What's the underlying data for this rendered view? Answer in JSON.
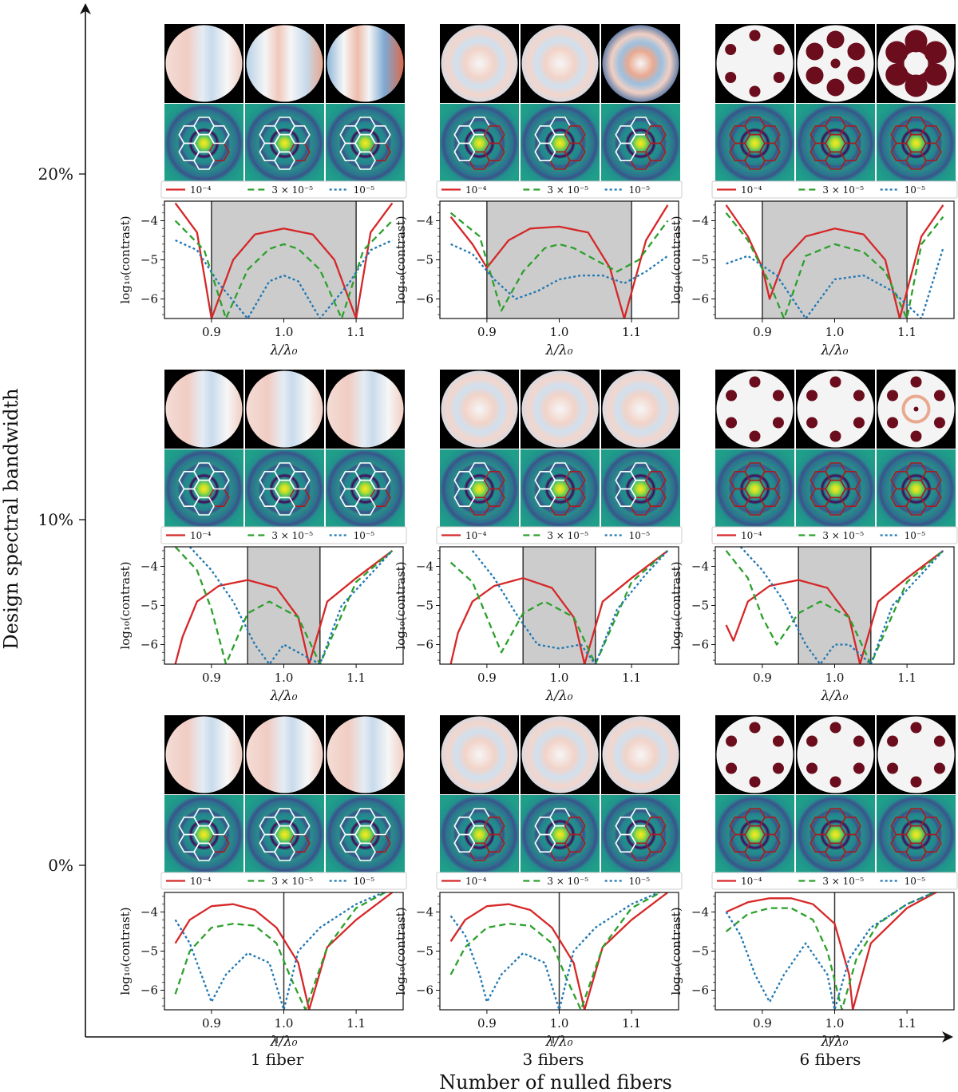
{
  "figure": {
    "y_axis_label": "Design spectral bandwidth",
    "x_axis_label": "Number of nulled fibers",
    "y_ticks": [
      "20%",
      "10%",
      "0%"
    ],
    "x_ticks": [
      "1 fiber",
      "3 fibers",
      "6 fibers"
    ]
  },
  "legend": {
    "entries": [
      "10⁻⁴",
      "3 × 10⁻⁵",
      "10⁻⁵"
    ]
  },
  "plot_labels": {
    "xlabel": "λ/λ₀",
    "ylabel": "log₁₀(contrast)"
  },
  "colors": {
    "red": "#d62728",
    "green": "#2ca02c",
    "blue": "#1f77b4",
    "band": "#cccccc",
    "dark_red": "#6b0d1c"
  },
  "chart_data": [
    {
      "type": "line",
      "bandwidth": "20%",
      "fibers": "1 fiber",
      "band": [
        0.9,
        1.1
      ],
      "xlim": [
        0.835,
        1.165
      ],
      "ylim": [
        -6.5,
        -3.5
      ],
      "xticks": [
        0.9,
        1.0,
        1.1
      ],
      "yticks": [
        -4,
        -5,
        -6
      ],
      "xlabel": "λ/λ₀",
      "ylabel": "log₁₀(contrast)",
      "series": [
        {
          "name": "10⁻⁴",
          "x": [
            0.85,
            0.88,
            0.9,
            0.93,
            0.96,
            1.0,
            1.04,
            1.07,
            1.1,
            1.12,
            1.15
          ],
          "y": [
            -3.55,
            -4.3,
            -6.5,
            -5.0,
            -4.35,
            -4.2,
            -4.35,
            -5.0,
            -6.5,
            -4.3,
            -3.55
          ]
        },
        {
          "name": "3 × 10⁻⁵",
          "x": [
            0.85,
            0.89,
            0.92,
            0.95,
            0.98,
            1.0,
            1.02,
            1.05,
            1.08,
            1.11,
            1.15
          ],
          "y": [
            -4.0,
            -4.75,
            -6.5,
            -5.25,
            -4.72,
            -4.6,
            -4.72,
            -5.25,
            -6.5,
            -4.75,
            -4.0
          ]
        },
        {
          "name": "10⁻⁵",
          "x": [
            0.85,
            0.88,
            0.91,
            0.95,
            0.98,
            1.0,
            1.02,
            1.05,
            1.09,
            1.12,
            1.15
          ],
          "y": [
            -4.5,
            -4.75,
            -5.6,
            -6.5,
            -5.55,
            -5.4,
            -5.55,
            -6.5,
            -5.6,
            -4.75,
            -4.5
          ]
        }
      ]
    },
    {
      "type": "line",
      "bandwidth": "20%",
      "fibers": "3 fibers",
      "band": [
        0.9,
        1.1
      ],
      "xlim": [
        0.835,
        1.165
      ],
      "ylim": [
        -6.5,
        -3.5
      ],
      "xticks": [
        0.9,
        1.0,
        1.1
      ],
      "yticks": [
        -4,
        -5,
        -6
      ],
      "xlabel": "λ/λ₀",
      "ylabel": "log₁₀(contrast)",
      "series": [
        {
          "name": "10⁻⁴",
          "x": [
            0.85,
            0.88,
            0.9,
            0.93,
            0.96,
            1.0,
            1.04,
            1.07,
            1.09,
            1.12,
            1.15
          ],
          "y": [
            -3.9,
            -4.6,
            -5.2,
            -4.5,
            -4.2,
            -4.15,
            -4.3,
            -5.2,
            -6.5,
            -4.5,
            -3.6
          ]
        },
        {
          "name": "3 × 10⁻⁵",
          "x": [
            0.85,
            0.89,
            0.92,
            0.95,
            0.98,
            1.0,
            1.02,
            1.05,
            1.08,
            1.11,
            1.15
          ],
          "y": [
            -3.8,
            -4.4,
            -6.3,
            -5.3,
            -4.7,
            -4.6,
            -4.7,
            -5.0,
            -5.3,
            -5.0,
            -4.0
          ]
        },
        {
          "name": "10⁻⁵",
          "x": [
            0.85,
            0.88,
            0.91,
            0.94,
            0.97,
            1.0,
            1.03,
            1.06,
            1.09,
            1.12,
            1.15
          ],
          "y": [
            -4.6,
            -4.85,
            -5.5,
            -6.0,
            -5.8,
            -5.5,
            -5.4,
            -5.4,
            -5.6,
            -5.3,
            -4.9
          ]
        }
      ]
    },
    {
      "type": "line",
      "bandwidth": "20%",
      "fibers": "6 fibers",
      "band": [
        0.9,
        1.1
      ],
      "xlim": [
        0.835,
        1.165
      ],
      "ylim": [
        -6.5,
        -3.5
      ],
      "xticks": [
        0.9,
        1.0,
        1.1
      ],
      "yticks": [
        -4,
        -5,
        -6
      ],
      "xlabel": "λ/λ₀",
      "ylabel": "log₁₀(contrast)",
      "series": [
        {
          "name": "10⁻⁴",
          "x": [
            0.85,
            0.88,
            0.9,
            0.91,
            0.93,
            0.96,
            1.0,
            1.04,
            1.07,
            1.09,
            1.12,
            1.15
          ],
          "y": [
            -3.6,
            -4.4,
            -5.2,
            -6.0,
            -5.0,
            -4.4,
            -4.2,
            -4.35,
            -5.0,
            -6.5,
            -4.4,
            -3.6
          ]
        },
        {
          "name": "3 × 10⁻⁵",
          "x": [
            0.85,
            0.88,
            0.91,
            0.93,
            0.96,
            1.0,
            1.04,
            1.07,
            1.1,
            1.12,
            1.15
          ],
          "y": [
            -3.8,
            -4.5,
            -5.6,
            -6.5,
            -4.9,
            -4.6,
            -4.8,
            -5.3,
            -6.5,
            -4.6,
            -3.9
          ]
        },
        {
          "name": "10⁻⁵",
          "x": [
            0.85,
            0.88,
            0.92,
            0.96,
            1.0,
            1.04,
            1.08,
            1.12,
            1.15
          ],
          "y": [
            -5.1,
            -4.9,
            -5.4,
            -6.5,
            -5.5,
            -5.4,
            -5.8,
            -6.5,
            -4.7
          ]
        }
      ]
    },
    {
      "type": "line",
      "bandwidth": "10%",
      "fibers": "1 fiber",
      "band": [
        0.95,
        1.05
      ],
      "xlim": [
        0.835,
        1.165
      ],
      "ylim": [
        -6.5,
        -3.5
      ],
      "xticks": [
        0.9,
        1.0,
        1.1
      ],
      "yticks": [
        -4,
        -5,
        -6
      ],
      "xlabel": "λ/λ₀",
      "ylabel": "log₁₀(contrast)",
      "series": [
        {
          "name": "10⁻⁴",
          "x": [
            0.85,
            0.86,
            0.88,
            0.91,
            0.95,
            0.99,
            1.02,
            1.035,
            1.06,
            1.1,
            1.15
          ],
          "y": [
            -6.5,
            -5.8,
            -4.9,
            -4.5,
            -4.35,
            -4.55,
            -5.3,
            -6.5,
            -4.9,
            -4.3,
            -3.6
          ]
        },
        {
          "name": "3 × 10⁻⁵",
          "x": [
            0.85,
            0.88,
            0.9,
            0.92,
            0.95,
            0.98,
            1.02,
            1.05,
            1.1,
            1.15
          ],
          "y": [
            -3.5,
            -4.1,
            -5.1,
            -6.5,
            -5.2,
            -4.9,
            -5.3,
            -6.5,
            -4.4,
            -3.6
          ]
        },
        {
          "name": "10⁻⁵",
          "x": [
            0.87,
            0.9,
            0.93,
            0.96,
            0.98,
            1.0,
            1.02,
            1.05,
            1.08,
            1.12,
            1.15
          ],
          "y": [
            -3.5,
            -4.1,
            -4.9,
            -6.0,
            -6.5,
            -6.0,
            -6.2,
            -6.5,
            -5.0,
            -4.2,
            -3.6
          ]
        }
      ]
    },
    {
      "type": "line",
      "bandwidth": "10%",
      "fibers": "3 fibers",
      "band": [
        0.95,
        1.05
      ],
      "xlim": [
        0.835,
        1.165
      ],
      "ylim": [
        -6.5,
        -3.5
      ],
      "xticks": [
        0.9,
        1.0,
        1.1
      ],
      "yticks": [
        -4,
        -5,
        -6
      ],
      "xlabel": "λ/λ₀",
      "ylabel": "log₁₀(contrast)",
      "series": [
        {
          "name": "10⁻⁴",
          "x": [
            0.85,
            0.86,
            0.88,
            0.91,
            0.95,
            0.99,
            1.02,
            1.035,
            1.06,
            1.1,
            1.15
          ],
          "y": [
            -6.5,
            -5.7,
            -4.9,
            -4.5,
            -4.3,
            -4.55,
            -5.3,
            -6.5,
            -4.9,
            -4.3,
            -3.6
          ]
        },
        {
          "name": "3 × 10⁻⁵",
          "x": [
            0.85,
            0.88,
            0.9,
            0.92,
            0.95,
            0.98,
            1.02,
            1.05,
            1.1,
            1.15
          ],
          "y": [
            -3.9,
            -4.4,
            -5.3,
            -6.2,
            -5.2,
            -4.9,
            -5.3,
            -6.5,
            -4.4,
            -3.6
          ]
        },
        {
          "name": "10⁻⁵",
          "x": [
            0.88,
            0.91,
            0.94,
            0.97,
            1.0,
            1.03,
            1.05,
            1.08,
            1.12,
            1.15
          ],
          "y": [
            -3.6,
            -4.3,
            -5.2,
            -6.0,
            -6.1,
            -6.0,
            -6.5,
            -5.1,
            -4.2,
            -3.6
          ]
        }
      ]
    },
    {
      "type": "line",
      "bandwidth": "10%",
      "fibers": "6 fibers",
      "band": [
        0.95,
        1.05
      ],
      "xlim": [
        0.835,
        1.165
      ],
      "ylim": [
        -6.5,
        -3.5
      ],
      "xticks": [
        0.9,
        1.0,
        1.1
      ],
      "yticks": [
        -4,
        -5,
        -6
      ],
      "xlabel": "λ/λ₀",
      "ylabel": "log₁₀(contrast)",
      "series": [
        {
          "name": "10⁻⁴",
          "x": [
            0.85,
            0.86,
            0.88,
            0.91,
            0.95,
            0.99,
            1.02,
            1.035,
            1.06,
            1.1,
            1.15
          ],
          "y": [
            -5.5,
            -5.9,
            -4.9,
            -4.5,
            -4.35,
            -4.55,
            -5.3,
            -6.5,
            -4.9,
            -4.3,
            -3.6
          ]
        },
        {
          "name": "3 × 10⁻⁵",
          "x": [
            0.85,
            0.88,
            0.9,
            0.92,
            0.95,
            0.98,
            1.02,
            1.05,
            1.1,
            1.15
          ],
          "y": [
            -3.6,
            -4.3,
            -5.3,
            -6.0,
            -5.2,
            -4.9,
            -5.3,
            -6.5,
            -4.4,
            -3.6
          ]
        },
        {
          "name": "10⁻⁵",
          "x": [
            0.87,
            0.9,
            0.93,
            0.96,
            0.98,
            1.0,
            1.02,
            1.05,
            1.08,
            1.12,
            1.15
          ],
          "y": [
            -3.5,
            -4.1,
            -4.9,
            -6.0,
            -6.5,
            -6.0,
            -6.0,
            -6.5,
            -5.0,
            -4.2,
            -3.6
          ]
        }
      ]
    },
    {
      "type": "line",
      "bandwidth": "0%",
      "fibers": "1 fiber",
      "band": [
        1.0,
        1.0
      ],
      "xlim": [
        0.835,
        1.165
      ],
      "ylim": [
        -6.5,
        -3.5
      ],
      "xticks": [
        0.9,
        1.0,
        1.1
      ],
      "yticks": [
        -4,
        -5,
        -6
      ],
      "xlabel": "λ/λ₀",
      "ylabel": "log₁₀(contrast)",
      "series": [
        {
          "name": "10⁻⁴",
          "x": [
            0.85,
            0.87,
            0.9,
            0.93,
            0.96,
            0.99,
            1.02,
            1.035,
            1.06,
            1.1,
            1.15
          ],
          "y": [
            -4.8,
            -4.2,
            -3.85,
            -3.8,
            -3.95,
            -4.4,
            -5.3,
            -6.5,
            -4.9,
            -4.2,
            -3.5
          ]
        },
        {
          "name": "3 × 10⁻⁵",
          "x": [
            0.85,
            0.87,
            0.9,
            0.93,
            0.96,
            0.99,
            1.01,
            1.03,
            1.06,
            1.1,
            1.15
          ],
          "y": [
            -6.1,
            -5.0,
            -4.4,
            -4.3,
            -4.35,
            -4.8,
            -5.7,
            -6.5,
            -4.9,
            -3.9,
            -3.4
          ]
        },
        {
          "name": "10⁻⁵",
          "x": [
            0.85,
            0.87,
            0.89,
            0.9,
            0.92,
            0.95,
            0.98,
            1.0,
            1.02,
            1.05,
            1.1,
            1.15
          ],
          "y": [
            -4.2,
            -4.8,
            -5.8,
            -6.3,
            -5.6,
            -5.05,
            -5.3,
            -6.5,
            -5.0,
            -4.4,
            -3.8,
            -3.4
          ]
        }
      ]
    },
    {
      "type": "line",
      "bandwidth": "0%",
      "fibers": "3 fibers",
      "band": [
        1.0,
        1.0
      ],
      "xlim": [
        0.835,
        1.165
      ],
      "ylim": [
        -6.5,
        -3.5
      ],
      "xticks": [
        0.9,
        1.0,
        1.1
      ],
      "yticks": [
        -4,
        -5,
        -6
      ],
      "xlabel": "λ/λ₀",
      "ylabel": "log₁₀(contrast)",
      "series": [
        {
          "name": "10⁻⁴",
          "x": [
            0.85,
            0.87,
            0.9,
            0.93,
            0.96,
            0.99,
            1.02,
            1.035,
            1.06,
            1.1,
            1.15
          ],
          "y": [
            -4.75,
            -4.2,
            -3.85,
            -3.8,
            -3.95,
            -4.4,
            -5.3,
            -6.5,
            -4.9,
            -4.2,
            -3.5
          ]
        },
        {
          "name": "3 × 10⁻⁵",
          "x": [
            0.85,
            0.87,
            0.9,
            0.93,
            0.96,
            0.99,
            1.01,
            1.03,
            1.06,
            1.1,
            1.15
          ],
          "y": [
            -5.6,
            -4.9,
            -4.4,
            -4.3,
            -4.35,
            -4.8,
            -5.7,
            -6.5,
            -4.9,
            -3.9,
            -3.4
          ]
        },
        {
          "name": "10⁻⁵",
          "x": [
            0.85,
            0.87,
            0.89,
            0.9,
            0.92,
            0.95,
            0.98,
            1.0,
            1.02,
            1.05,
            1.1,
            1.15
          ],
          "y": [
            -4.1,
            -4.6,
            -5.6,
            -6.3,
            -5.6,
            -5.05,
            -5.3,
            -6.5,
            -5.0,
            -4.4,
            -3.8,
            -3.4
          ]
        }
      ]
    },
    {
      "type": "line",
      "bandwidth": "0%",
      "fibers": "6 fibers",
      "band": [
        1.0,
        1.0
      ],
      "xlim": [
        0.835,
        1.165
      ],
      "ylim": [
        -6.5,
        -3.5
      ],
      "xticks": [
        0.9,
        1.0,
        1.1
      ],
      "yticks": [
        -4,
        -5,
        -6
      ],
      "xlabel": "λ/λ₀",
      "ylabel": "log₁₀(contrast)",
      "series": [
        {
          "name": "10⁻⁴",
          "x": [
            0.85,
            0.88,
            0.91,
            0.94,
            0.97,
            1.0,
            1.02,
            1.025,
            1.05,
            1.1,
            1.15
          ],
          "y": [
            -4.0,
            -3.75,
            -3.65,
            -3.65,
            -3.8,
            -4.3,
            -5.6,
            -6.5,
            -4.8,
            -3.9,
            -3.4
          ]
        },
        {
          "name": "3 × 10⁻⁵",
          "x": [
            0.85,
            0.88,
            0.91,
            0.94,
            0.97,
            0.99,
            1.01,
            1.03,
            1.06,
            1.1,
            1.15
          ],
          "y": [
            -4.5,
            -4.05,
            -3.9,
            -3.9,
            -4.2,
            -5.0,
            -6.5,
            -5.2,
            -4.3,
            -3.8,
            -3.4
          ]
        },
        {
          "name": "10⁻⁵",
          "x": [
            0.85,
            0.87,
            0.89,
            0.91,
            0.93,
            0.96,
            0.99,
            1.0,
            1.02,
            1.05,
            1.1,
            1.15
          ],
          "y": [
            -4.0,
            -4.6,
            -5.6,
            -6.3,
            -5.6,
            -4.8,
            -5.6,
            -6.5,
            -5.2,
            -4.4,
            -3.8,
            -3.4
          ]
        }
      ]
    }
  ]
}
